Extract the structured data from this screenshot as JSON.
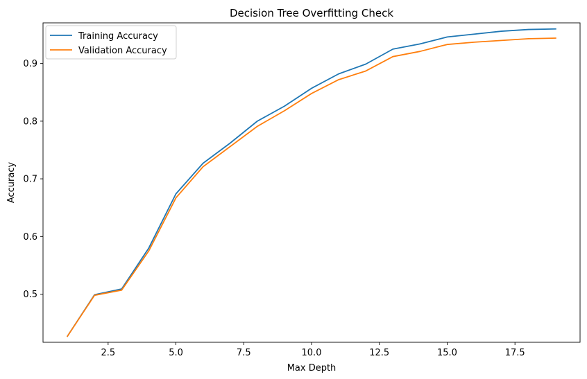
{
  "chart_data": {
    "type": "line",
    "title": "Decision Tree Overfitting Check",
    "xlabel": "Max Depth",
    "ylabel": "Accuracy",
    "xlim": [
      0.1,
      19.9
    ],
    "ylim": [
      0.4165,
      0.9705
    ],
    "xticks": [
      2.5,
      5.0,
      7.5,
      10.0,
      12.5,
      15.0,
      17.5
    ],
    "xtick_labels": [
      "2.5",
      "5.0",
      "7.5",
      "10.0",
      "12.5",
      "15.0",
      "17.5"
    ],
    "yticks": [
      0.5,
      0.6,
      0.7,
      0.8,
      0.9
    ],
    "ytick_labels": [
      "0.5",
      "0.6",
      "0.7",
      "0.8",
      "0.9"
    ],
    "grid": false,
    "legend_position": "top-left",
    "x": [
      1,
      2,
      3,
      4,
      5,
      6,
      7,
      8,
      9,
      10,
      11,
      12,
      13,
      14,
      15,
      16,
      17,
      18,
      19
    ],
    "series": [
      {
        "name": "Training Accuracy",
        "color": "#1f77b4",
        "values": [
          0.427,
          0.499,
          0.509,
          0.58,
          0.674,
          0.727,
          0.762,
          0.8,
          0.826,
          0.857,
          0.882,
          0.899,
          0.925,
          0.934,
          0.946,
          0.951,
          0.956,
          0.959,
          0.96
        ]
      },
      {
        "name": "Validation Accuracy",
        "color": "#ff7f0e",
        "values": [
          0.427,
          0.498,
          0.507,
          0.575,
          0.667,
          0.721,
          0.756,
          0.791,
          0.818,
          0.848,
          0.872,
          0.887,
          0.912,
          0.921,
          0.933,
          0.937,
          0.94,
          0.943,
          0.944
        ]
      }
    ]
  }
}
